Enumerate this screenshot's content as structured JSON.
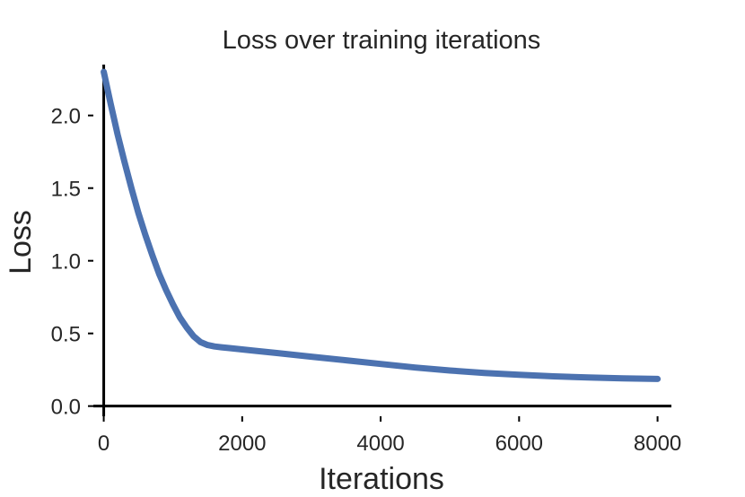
{
  "chart_data": {
    "type": "line",
    "title": "Loss over training iterations",
    "xlabel": "Iterations",
    "ylabel": "Loss",
    "xlim": [
      -150,
      8200
    ],
    "ylim": [
      -0.07,
      2.35
    ],
    "xticks": [
      0,
      2000,
      4000,
      6000,
      8000
    ],
    "xtick_labels": [
      "0",
      "2000",
      "4000",
      "6000",
      "8000"
    ],
    "yticks": [
      0.0,
      0.5,
      1.0,
      1.5,
      2.0
    ],
    "ytick_labels": [
      "0.0",
      "0.5",
      "1.0",
      "1.5",
      "2.0"
    ],
    "grid": false,
    "series_color": "#4c72b0",
    "series": [
      {
        "x": [
          0,
          100,
          200,
          300,
          400,
          500,
          600,
          700,
          800,
          900,
          1000,
          1100,
          1200,
          1300,
          1400,
          1500,
          1600,
          1700,
          1800,
          2000,
          2200,
          2500,
          3000,
          3500,
          4000,
          4500,
          5000,
          5500,
          6000,
          6500,
          7000,
          7500,
          8000
        ],
        "y": [
          2.3,
          2.08,
          1.87,
          1.68,
          1.5,
          1.33,
          1.18,
          1.04,
          0.91,
          0.8,
          0.7,
          0.61,
          0.54,
          0.48,
          0.44,
          0.42,
          0.41,
          0.405,
          0.4,
          0.39,
          0.38,
          0.365,
          0.34,
          0.315,
          0.29,
          0.265,
          0.245,
          0.228,
          0.215,
          0.205,
          0.197,
          0.191,
          0.187
        ]
      }
    ]
  }
}
